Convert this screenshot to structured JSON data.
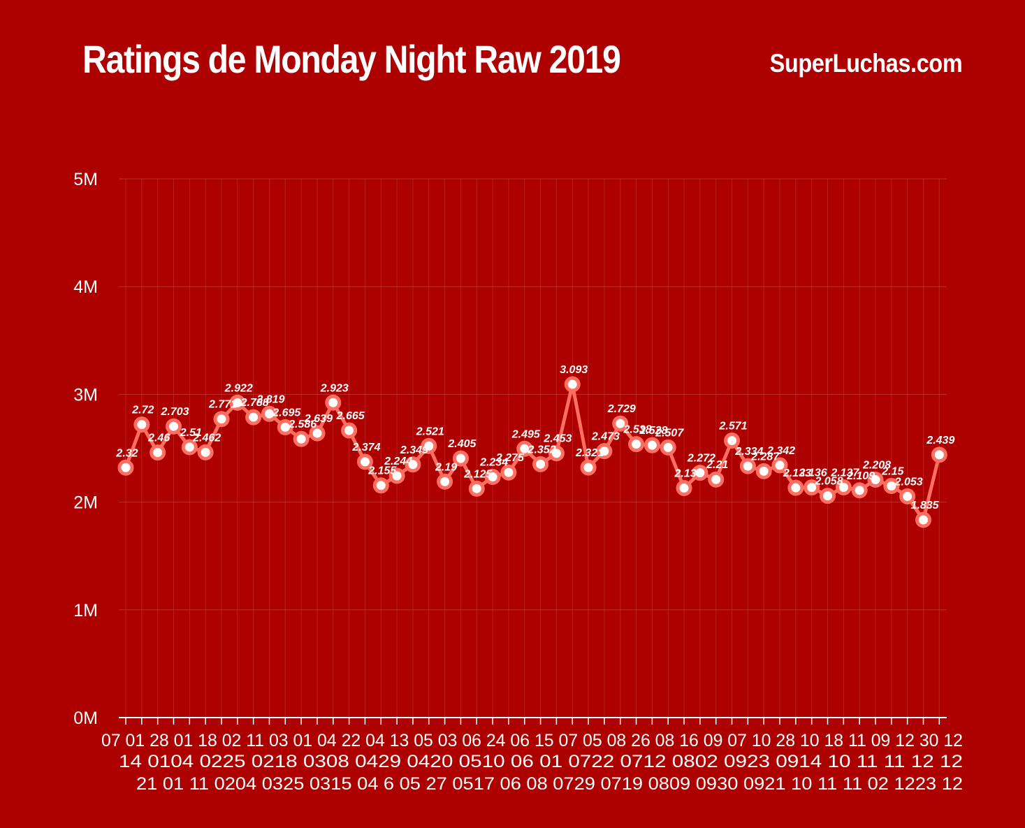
{
  "header": {
    "title": "Ratings de Monday Night Raw 2019",
    "brand": "SuperLuchas.com"
  },
  "colors": {
    "background": "#ad0000",
    "line": "#ff6f61",
    "marker_fill": "#ffffff",
    "grid": "#c43a34",
    "text": "#ffffff"
  },
  "chart_data": {
    "type": "line",
    "title": "Ratings de Monday Night Raw 2019",
    "xlabel": "",
    "ylabel": "",
    "ylim": [
      0,
      5
    ],
    "y_ticks": [
      "0M",
      "1M",
      "2M",
      "3M",
      "4M",
      "5M"
    ],
    "grid": true,
    "legend": "none",
    "x": [
      "07 01",
      "14 01",
      "21 01",
      "28 01",
      "04 02",
      "11 02",
      "18 02",
      "25 02",
      "04 03",
      "11 03",
      "18 03",
      "25 03",
      "01 04",
      "08 04",
      "15 04",
      "22 04",
      "29 04",
      "6 05",
      "13 05",
      "20 05",
      "27 05",
      "03 06",
      "10 06",
      "17 06",
      "24 06",
      "01 07",
      "08 07",
      "15 07",
      "22 07",
      "29 07",
      "05 08",
      "12 08",
      "19 08",
      "26 08",
      "02 09",
      "09 09",
      "16 09",
      "23 09",
      "30 09",
      "07 10",
      "14 10",
      "21 10",
      "28 10",
      "04 11",
      "11 11",
      "18 11",
      "25 11",
      "02 12",
      "09 12",
      "16 12",
      "23 12",
      "30 12"
    ],
    "x_tick_rows": [
      [
        "07",
        "01",
        "28",
        "01",
        "18",
        "02",
        "11",
        "03",
        "01",
        "04",
        "22",
        "04",
        "13",
        "05",
        "03",
        "06",
        "24",
        "06",
        "15",
        "07",
        "05",
        "08",
        "26",
        "08",
        "16",
        "09",
        "07",
        "10",
        "28",
        "10",
        "18",
        "11",
        "09",
        "12",
        "30",
        "12"
      ],
      [
        "14",
        "0104",
        "0225",
        "0218",
        "0308",
        "0429",
        "0420",
        "0510",
        "06",
        "01",
        "0722",
        "0712",
        "0802",
        "0923",
        "0914",
        "10",
        "11",
        "11",
        "12",
        "12"
      ],
      [
        "21",
        "01",
        "11",
        "0204",
        "0325",
        "0315",
        "04",
        "6",
        "05",
        "27",
        "0517",
        "06",
        "08",
        "0729",
        "0719",
        "0809",
        "0930",
        "0921",
        "10",
        "11",
        "11",
        "02",
        "1223",
        "12"
      ]
    ],
    "series": [
      {
        "values": [
          2.32,
          2.72,
          2.46,
          2.703,
          2.51,
          2.462,
          2.771,
          2.922,
          2.788,
          2.819,
          2.695,
          2.586,
          2.639,
          2.923,
          2.665,
          2.374,
          2.155,
          2.244,
          2.349,
          2.521,
          2.19,
          2.405,
          2.125,
          2.234,
          2.275,
          2.495,
          2.352,
          2.453,
          3.093,
          2.321,
          2.473,
          2.729,
          2.538,
          2.528,
          2.507,
          2.13,
          2.272,
          2.21,
          2.571,
          2.334,
          2.287,
          2.342,
          2.133,
          2.136,
          2.058,
          2.137,
          2.109,
          2.208,
          2.15,
          2.053,
          1.835,
          2.439
        ],
        "labels": [
          "2.32",
          "2.72",
          "2.46",
          "2.703",
          "2.51",
          "2.462",
          "2.771",
          "2.922",
          "2.788",
          "2.819",
          "2.695",
          "2.586",
          "2.639",
          "2.923",
          "2.665",
          "2.374",
          "2.155",
          "2.244",
          "2.349",
          "2.521",
          "2.19",
          "2.405",
          "2.125",
          "2.234",
          "2.275",
          "2.495",
          "2.352",
          "2.453",
          "3.093",
          "2.321",
          "2.473",
          "2.729",
          "2.538",
          "2.528",
          "2.507",
          "2.13",
          "2.272",
          "2.21",
          "2.571",
          "2.334",
          "2.287",
          "2.342",
          "2.133",
          "2.136",
          "2.058",
          "2.137",
          "2.109",
          "2.208",
          "2.15",
          "2.053",
          "1.835",
          "2.439"
        ]
      }
    ]
  }
}
